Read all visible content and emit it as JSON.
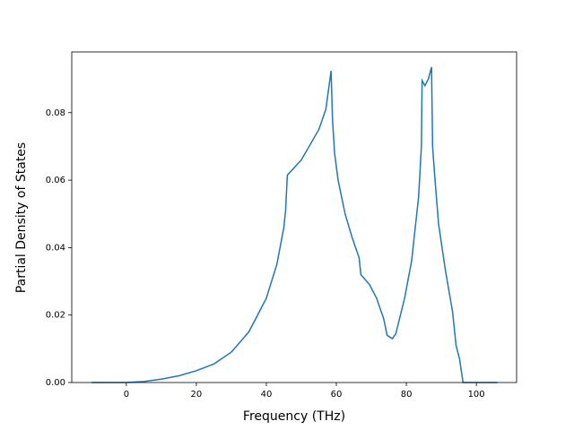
{
  "chart_data": {
    "type": "line",
    "xlabel": "Frequency (THz)",
    "ylabel": "Partial Density of States",
    "x": [
      -10,
      0,
      5,
      10,
      15,
      20,
      25,
      30,
      35,
      40,
      43,
      45,
      45.5,
      46,
      50,
      55,
      57,
      58.5,
      58.9,
      59.5,
      60.5,
      62.5,
      64.5,
      66.5,
      67,
      69.5,
      71.5,
      73.5,
      74.5,
      76,
      77,
      79.5,
      81.5,
      83.5,
      84.3,
      84.5,
      85.3,
      86.3,
      87.2,
      87.5,
      88.2,
      89.2,
      91.2,
      93.2,
      94.2,
      95.2,
      96.2,
      100,
      106
    ],
    "series": [
      {
        "name": "PDOS",
        "color": "#1f77b4",
        "values": [
          0,
          0,
          0.0003,
          0.001,
          0.002,
          0.0035,
          0.0055,
          0.009,
          0.015,
          0.025,
          0.035,
          0.046,
          0.051,
          0.0615,
          0.066,
          0.075,
          0.081,
          0.0924,
          0.078,
          0.068,
          0.06,
          0.05,
          0.043,
          0.037,
          0.032,
          0.029,
          0.025,
          0.019,
          0.014,
          0.013,
          0.0145,
          0.025,
          0.036,
          0.055,
          0.07,
          0.0895,
          0.088,
          0.09,
          0.0935,
          0.07,
          0.06,
          0.047,
          0.033,
          0.021,
          0.011,
          0.007,
          0,
          0,
          0
        ]
      }
    ],
    "xlim": [
      -15.6,
      111.5
    ],
    "ylim": [
      0,
      0.098
    ],
    "xticks": [
      0,
      20,
      40,
      60,
      80,
      100
    ],
    "yticks": [
      {
        "value": 0,
        "label": "0.00"
      },
      {
        "value": 0.02,
        "label": "0.02"
      },
      {
        "value": 0.04,
        "label": "0.04"
      },
      {
        "value": 0.06,
        "label": "0.06"
      },
      {
        "value": 0.08,
        "label": "0.08"
      }
    ],
    "grid": false
  }
}
